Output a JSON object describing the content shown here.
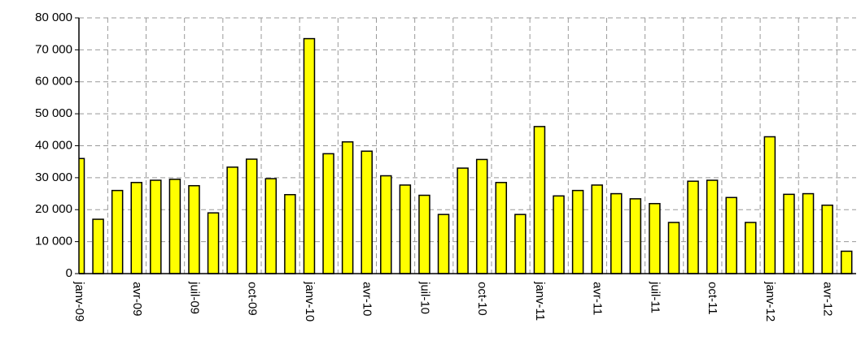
{
  "chart_data": {
    "type": "bar",
    "color": "#ffff00",
    "grid": true,
    "categories": [
      "janv-09",
      null,
      null,
      "avr-09",
      null,
      null,
      "juil-09",
      null,
      null,
      "oct-09",
      null,
      null,
      "janv-10",
      null,
      null,
      "avr-10",
      null,
      null,
      "juil-10",
      null,
      null,
      "oct-10",
      null,
      null,
      "janv-11",
      null,
      null,
      "avr-11",
      null,
      null,
      "juil-11",
      null,
      null,
      "oct-11",
      null,
      null,
      "janv-12",
      null,
      null,
      "avr-12",
      null
    ],
    "values": [
      36000,
      17000,
      26000,
      28500,
      29200,
      29500,
      27500,
      19000,
      33300,
      35800,
      29700,
      24700,
      73500,
      37500,
      41200,
      38300,
      30600,
      27700,
      24500,
      18500,
      33000,
      35700,
      28500,
      18500,
      46000,
      24300,
      26000,
      27700,
      25000,
      23400,
      21900,
      16000,
      28900,
      29200,
      23800,
      16000,
      42800,
      24800,
      25000,
      21400,
      7000
    ],
    "ylim": [
      0,
      80000
    ],
    "yticks": [
      0,
      {
        "value": 10000,
        "label": "10 000"
      },
      {
        "value": 20000,
        "label": "20 000"
      },
      {
        "value": 30000,
        "label": "30 000"
      },
      {
        "value": 40000,
        "label": "40 000"
      },
      {
        "value": 50000,
        "label": "50 000"
      },
      {
        "value": 60000,
        "label": "60 000"
      },
      {
        "value": 70000,
        "label": "70 000"
      },
      {
        "value": 80000,
        "label": "80 000"
      }
    ]
  }
}
